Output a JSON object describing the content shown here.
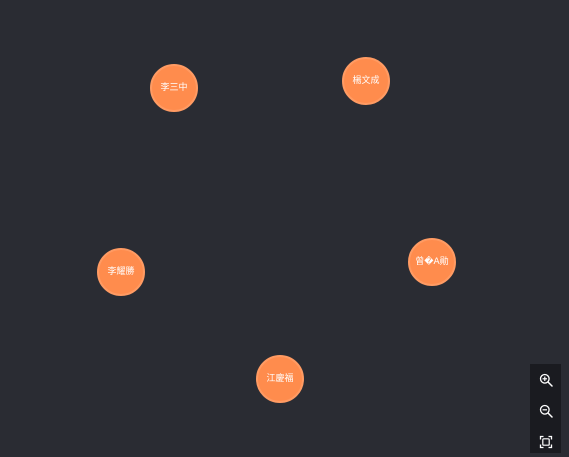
{
  "graph": {
    "nodes": [
      {
        "id": "n1",
        "label": "李三中"
      },
      {
        "id": "n2",
        "label": "楊文成"
      },
      {
        "id": "n3",
        "label": "李耀勝"
      },
      {
        "id": "n4",
        "label": "曾�A勛"
      },
      {
        "id": "n5",
        "label": "江慶福"
      }
    ],
    "node_color": "#ff8c4d",
    "background_color": "#2a2c33"
  },
  "toolbar": {
    "buttons": [
      {
        "icon": "zoom-in-icon"
      },
      {
        "icon": "zoom-out-icon"
      },
      {
        "icon": "fit-view-icon"
      }
    ]
  }
}
